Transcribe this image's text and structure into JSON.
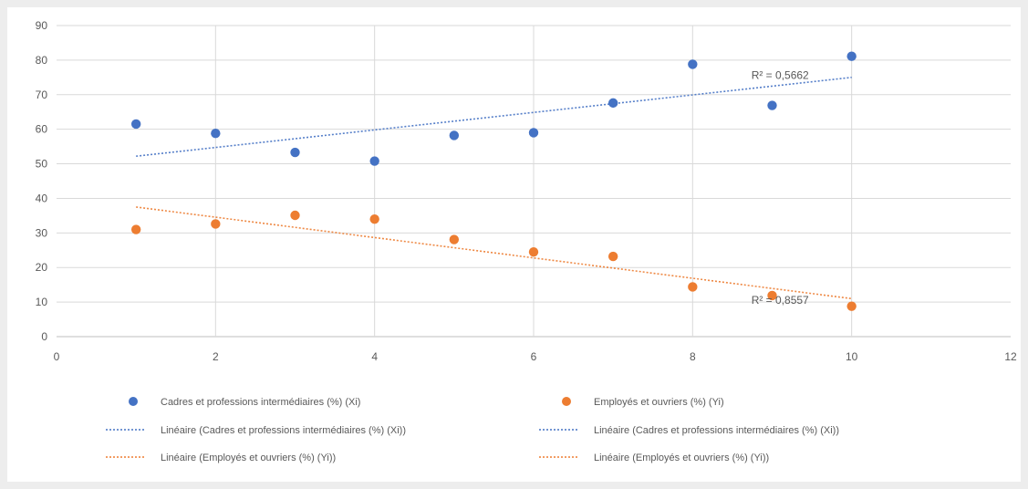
{
  "chart_data": {
    "type": "scatter",
    "xlim": [
      0,
      12
    ],
    "ylim": [
      0,
      90
    ],
    "x_ticks": [
      0,
      2,
      4,
      6,
      8,
      10,
      12
    ],
    "y_ticks": [
      0,
      10,
      20,
      30,
      40,
      50,
      60,
      70,
      80,
      90
    ],
    "grid": true,
    "legend_position": "bottom",
    "series": [
      {
        "name": "Cadres et professions intermédiaires (%) (Xi)",
        "color": "#4472c4",
        "x": [
          1,
          2,
          3,
          4,
          5,
          6,
          7,
          8,
          9,
          10
        ],
        "y": [
          61.5,
          58.8,
          53.3,
          50.8,
          58.2,
          59.0,
          67.6,
          78.8,
          66.9,
          81.1
        ]
      },
      {
        "name": "Employés et ouvriers (%) (Yi)",
        "color": "#ed7d31",
        "x": [
          1,
          2,
          3,
          4,
          5,
          6,
          7,
          8,
          9,
          10
        ],
        "y": [
          31.0,
          32.6,
          35.1,
          34.0,
          28.1,
          24.5,
          23.2,
          14.4,
          11.9,
          8.8
        ]
      }
    ],
    "trendlines": [
      {
        "name": "Linéaire (Cadres et professions intermédiaires (%) (Xi))",
        "color": "#4472c4",
        "x": [
          1,
          10
        ],
        "y": [
          52.2,
          75.0
        ],
        "r_squared_label": "R² = 0,5662"
      },
      {
        "name": "Linéaire (Employés et ouvriers (%) (Yi))",
        "color": "#ed7d31",
        "x": [
          1,
          10
        ],
        "y": [
          37.5,
          11.0
        ],
        "r_squared_label": "R² = 0,8557"
      }
    ],
    "legend_entries": [
      {
        "label": "Cadres et professions intermédiaires (%) (Xi)",
        "kind": "marker",
        "color": "#4472c4"
      },
      {
        "label": "Employés et ouvriers (%) (Yi)",
        "kind": "marker",
        "color": "#ed7d31"
      },
      {
        "label": "Linéaire (Cadres et professions intermédiaires (%) (Xi))",
        "kind": "line",
        "color": "#4472c4"
      },
      {
        "label": "Linéaire (Cadres et professions intermédiaires (%) (Xi))",
        "kind": "line",
        "color": "#4472c4"
      },
      {
        "label": "Linéaire (Employés et ouvriers (%) (Yi))",
        "kind": "line",
        "color": "#ed7d31"
      },
      {
        "label": "Linéaire (Employés et ouvriers (%) (Yi))",
        "kind": "line",
        "color": "#ed7d31"
      }
    ]
  }
}
